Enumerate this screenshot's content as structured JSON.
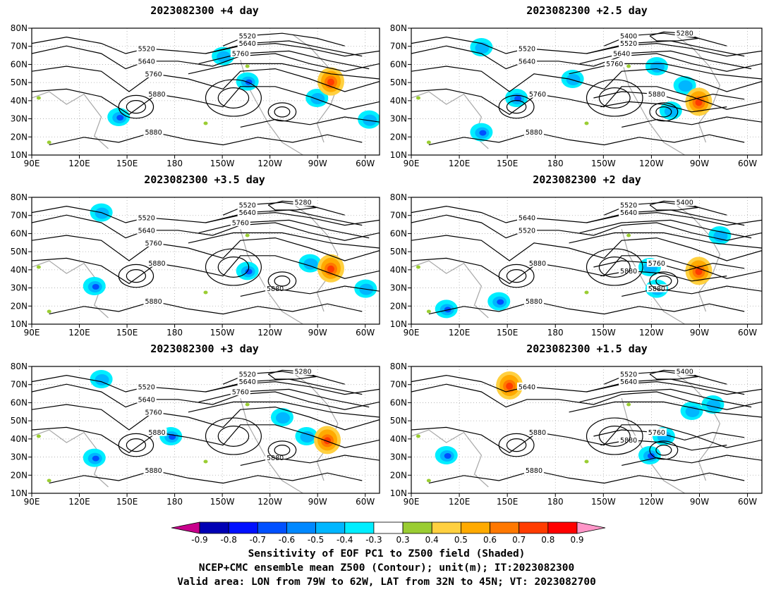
{
  "chart_data": {
    "type": "map-contour",
    "panels": [
      {
        "title": "2023082300 +4 day",
        "contours": {
          "lo": [
            "5520",
            "5640",
            "5760"
          ],
          "mid": [
            "5880"
          ],
          "east_a": [
            "5520",
            "5640",
            "5760"
          ],
          "bottom": [
            "5880"
          ]
        },
        "shading": {
          "neg": [
            [
              0.25,
              0.7
            ],
            [
              0.62,
              0.42
            ],
            [
              0.82,
              0.55
            ],
            [
              0.97,
              0.72
            ],
            [
              0.55,
              0.22
            ]
          ],
          "pos": [
            [
              0.86,
              0.42
            ]
          ]
        }
      },
      {
        "title": "2023082300 +2.5 day",
        "contours": {
          "lo": [
            "5520",
            "5640"
          ],
          "mid": [
            "5760"
          ],
          "east_a": [
            "5400",
            "5520",
            "5640",
            "5760"
          ],
          "east_b": [
            "5280"
          ],
          "bottom": [
            "5880"
          ],
          "extra": [
            "5880"
          ]
        },
        "shading": {
          "neg": [
            [
              0.2,
              0.82
            ],
            [
              0.3,
              0.55
            ],
            [
              0.46,
              0.4
            ],
            [
              0.74,
              0.65
            ],
            [
              0.7,
              0.3
            ],
            [
              0.2,
              0.15
            ],
            [
              0.78,
              0.45
            ]
          ],
          "pos": [
            [
              0.82,
              0.58
            ]
          ]
        }
      },
      {
        "title": "2023082300 +3.5 day",
        "contours": {
          "lo": [
            "5520",
            "5640",
            "5760"
          ],
          "mid": [
            "5880"
          ],
          "east_a": [
            "5520",
            "5640",
            "5760"
          ],
          "east_b": [
            "5280"
          ],
          "bottom": [
            "5880",
            "5880"
          ]
        },
        "shading": {
          "neg": [
            [
              0.18,
              0.7
            ],
            [
              0.62,
              0.58
            ],
            [
              0.8,
              0.52
            ],
            [
              0.96,
              0.72
            ],
            [
              0.2,
              0.12
            ]
          ],
          "pos": [
            [
              0.86,
              0.56
            ]
          ]
        }
      },
      {
        "title": "2023082300 +2 day",
        "contours": {
          "lo": [
            "5640",
            "5520"
          ],
          "mid": [
            "5760",
            "5880"
          ],
          "east_a": [
            "5520",
            "5640"
          ],
          "east_b": [
            "5400"
          ],
          "bottom": [
            "5880",
            "5880"
          ],
          "extra": [
            "5760",
            "5880"
          ]
        },
        "shading": {
          "neg": [
            [
              0.1,
              0.88
            ],
            [
              0.25,
              0.82
            ],
            [
              0.68,
              0.55
            ],
            [
              0.7,
              0.72
            ],
            [
              0.88,
              0.3
            ]
          ],
          "pos": [
            [
              0.82,
              0.58
            ]
          ]
        }
      },
      {
        "title": "2023082300 +3 day",
        "contours": {
          "lo": [
            "5520",
            "5640",
            "5760"
          ],
          "mid": [
            "5880"
          ],
          "east_a": [
            "5520",
            "5640",
            "5760"
          ],
          "east_b": [
            "5280"
          ],
          "bottom": [
            "5880",
            "5880"
          ]
        },
        "shading": {
          "neg": [
            [
              0.18,
              0.72
            ],
            [
              0.4,
              0.55
            ],
            [
              0.79,
              0.55
            ],
            [
              0.72,
              0.4
            ],
            [
              0.2,
              0.1
            ]
          ],
          "pos": [
            [
              0.85,
              0.58
            ]
          ]
        }
      },
      {
        "title": "2023082300 +1.5 day",
        "contours": {
          "lo": [
            "5640"
          ],
          "mid": [
            "5760",
            "5880"
          ],
          "east_a": [
            "5520",
            "5640"
          ],
          "east_b": [
            "5400"
          ],
          "bottom": [
            "5880"
          ],
          "extra": [
            "5760",
            "5880"
          ]
        },
        "shading": {
          "neg": [
            [
              0.1,
              0.7
            ],
            [
              0.68,
              0.7
            ],
            [
              0.72,
              0.55
            ],
            [
              0.8,
              0.35
            ],
            [
              0.86,
              0.3
            ]
          ],
          "pos": [
            [
              0.28,
              0.15
            ]
          ]
        }
      }
    ],
    "x_ticks": [
      "90E",
      "120E",
      "150E",
      "180",
      "150W",
      "120W",
      "90W",
      "60W"
    ],
    "y_ticks": [
      "10N",
      "20N",
      "30N",
      "40N",
      "50N",
      "60N",
      "70N",
      "80N"
    ],
    "colorbar": {
      "levels": [
        "-0.9",
        "-0.8",
        "-0.7",
        "-0.6",
        "-0.5",
        "-0.4",
        "-0.3",
        "0.3",
        "0.4",
        "0.5",
        "0.6",
        "0.7",
        "0.8",
        "0.9"
      ],
      "colors": [
        "#0000b4",
        "#0010ff",
        "#0050ff",
        "#0088ff",
        "#00b6ff",
        "#00eeff",
        "#ffffff",
        "#9acd32",
        "#ffd040",
        "#ffaa00",
        "#ff7800",
        "#ff3c00",
        "#ff0000"
      ],
      "under_color": "#c8008c",
      "over_color": "#ff96c8"
    },
    "captions": [
      "Sensitivity of EOF PC1 to Z500 field (Shaded)",
      "NCEP+CMC ensemble mean Z500 (Contour); unit(m); IT:2023082300",
      "Valid area: LON from 79W to 62W, LAT from 32N to 45N; VT: 2023082700"
    ]
  }
}
